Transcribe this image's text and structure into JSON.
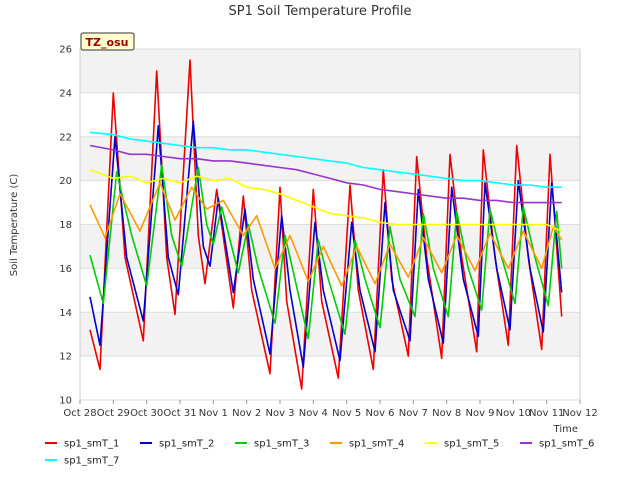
{
  "chart_data": {
    "type": "line",
    "title": "SP1 Soil Temperature Profile",
    "xlabel": "Time",
    "ylabel": "Soil Temperature (C)",
    "ylim": [
      10,
      26
    ],
    "yticks": [
      10,
      12,
      14,
      16,
      18,
      20,
      22,
      24,
      26
    ],
    "xlim": [
      0,
      15
    ],
    "xticks": [
      {
        "pos": 0,
        "label": "Oct 28"
      },
      {
        "pos": 1,
        "label": "Oct 29"
      },
      {
        "pos": 2,
        "label": "Oct 30"
      },
      {
        "pos": 3,
        "label": "Oct 31"
      },
      {
        "pos": 4,
        "label": "Nov 1"
      },
      {
        "pos": 5,
        "label": "Nov 2"
      },
      {
        "pos": 6,
        "label": "Nov 3"
      },
      {
        "pos": 7,
        "label": "Nov 4"
      },
      {
        "pos": 8,
        "label": "Nov 5"
      },
      {
        "pos": 9,
        "label": "Nov 6"
      },
      {
        "pos": 10,
        "label": "Nov 7"
      },
      {
        "pos": 11,
        "label": "Nov 8"
      },
      {
        "pos": 12,
        "label": "Nov 9"
      },
      {
        "pos": 13,
        "label": "Nov 10"
      },
      {
        "pos": 14,
        "label": "Nov 11"
      },
      {
        "pos": 15,
        "label": "Nov 12"
      }
    ],
    "annotation": "TZ_osu",
    "legend_position": "bottom",
    "series": [
      {
        "name": "sp1_smT_1",
        "color": "#ee0000",
        "x": [
          0.3,
          0.6,
          1.0,
          1.35,
          1.9,
          2.3,
          2.6,
          2.85,
          3.3,
          3.55,
          3.75,
          4.1,
          4.6,
          4.9,
          5.15,
          5.7,
          6.0,
          6.2,
          6.65,
          7.0,
          7.25,
          7.75,
          8.1,
          8.35,
          8.8,
          9.1,
          9.35,
          9.85,
          10.1,
          10.4,
          10.85,
          11.1,
          11.45,
          11.9,
          12.1,
          12.45,
          12.85,
          13.1,
          13.45,
          13.85,
          14.1,
          14.45
        ],
        "y": [
          13.2,
          11.4,
          24.0,
          16.5,
          12.7,
          25.0,
          16.5,
          13.9,
          25.5,
          17.5,
          15.3,
          19.6,
          14.2,
          19.3,
          15.0,
          11.2,
          19.7,
          14.5,
          10.5,
          19.6,
          14.5,
          11.0,
          19.8,
          15.0,
          11.4,
          20.5,
          15.5,
          12.0,
          21.1,
          16.5,
          11.9,
          21.2,
          16.5,
          12.2,
          21.4,
          16.5,
          12.5,
          21.6,
          16.5,
          12.3,
          21.2,
          13.8
        ]
      },
      {
        "name": "sp1_smT_2",
        "color": "#0000cc",
        "x": [
          0.3,
          0.6,
          1.05,
          1.4,
          1.9,
          2.35,
          2.65,
          2.95,
          3.4,
          3.7,
          3.9,
          4.15,
          4.6,
          4.95,
          5.2,
          5.7,
          6.05,
          6.3,
          6.7,
          7.05,
          7.3,
          7.8,
          8.15,
          8.4,
          8.85,
          9.15,
          9.4,
          9.9,
          10.15,
          10.45,
          10.9,
          11.15,
          11.5,
          11.95,
          12.15,
          12.5,
          12.9,
          13.15,
          13.5,
          13.9,
          14.15,
          14.45
        ],
        "y": [
          14.7,
          12.5,
          22.0,
          16.5,
          13.6,
          22.5,
          16.5,
          14.8,
          22.7,
          17.0,
          16.1,
          19.2,
          14.9,
          18.7,
          15.5,
          12.1,
          18.4,
          15.0,
          11.5,
          18.1,
          15.0,
          11.8,
          18.1,
          15.0,
          12.2,
          19.0,
          15.0,
          12.7,
          19.6,
          15.5,
          12.6,
          19.7,
          15.5,
          12.9,
          19.9,
          16.0,
          13.2,
          20.0,
          16.0,
          13.1,
          19.9,
          14.9
        ]
      },
      {
        "name": "sp1_smT_3",
        "color": "#00cc00",
        "x": [
          0.3,
          0.7,
          1.1,
          1.55,
          2.0,
          2.45,
          2.75,
          3.05,
          3.55,
          3.8,
          4.0,
          4.25,
          4.75,
          5.05,
          5.35,
          5.85,
          6.15,
          6.45,
          6.85,
          7.15,
          7.45,
          7.95,
          8.25,
          8.55,
          9.0,
          9.3,
          9.6,
          10.05,
          10.3,
          10.6,
          11.05,
          11.3,
          11.65,
          12.05,
          12.3,
          12.65,
          13.05,
          13.3,
          13.65,
          14.05,
          14.3,
          14.45
        ],
        "y": [
          16.6,
          14.4,
          20.4,
          17.5,
          15.2,
          20.7,
          17.5,
          16.1,
          20.6,
          18.0,
          17.1,
          18.8,
          15.8,
          18.0,
          16.0,
          13.5,
          17.5,
          15.5,
          12.8,
          17.3,
          15.5,
          13.0,
          17.3,
          15.5,
          13.3,
          17.9,
          15.5,
          13.8,
          18.5,
          16.0,
          13.8,
          18.6,
          16.0,
          14.1,
          18.7,
          16.5,
          14.4,
          18.8,
          16.5,
          14.3,
          18.6,
          16.0
        ]
      },
      {
        "name": "sp1_smT_4",
        "color": "#ff9900",
        "x": [
          0.3,
          0.75,
          1.2,
          1.8,
          2.4,
          2.85,
          3.35,
          3.8,
          4.3,
          4.9,
          5.3,
          5.85,
          6.3,
          6.85,
          7.3,
          7.85,
          8.3,
          8.85,
          9.3,
          9.85,
          10.3,
          10.85,
          11.3,
          11.85,
          12.3,
          12.85,
          13.3,
          13.85,
          14.2,
          14.45
        ],
        "y": [
          18.9,
          17.4,
          19.4,
          17.7,
          19.9,
          18.2,
          19.7,
          18.7,
          19.1,
          17.5,
          18.4,
          16.0,
          17.5,
          15.4,
          17.0,
          15.2,
          17.0,
          15.3,
          17.1,
          15.6,
          17.4,
          15.8,
          17.5,
          15.9,
          17.6,
          16.0,
          17.7,
          16.0,
          17.9,
          17.3
        ]
      },
      {
        "name": "sp1_smT_5",
        "color": "#ffff00",
        "x": [
          0.3,
          1.0,
          1.5,
          2.0,
          2.5,
          3.0,
          3.5,
          4.0,
          4.5,
          5.0,
          5.5,
          6.0,
          6.5,
          7.0,
          7.5,
          8.0,
          8.5,
          9.0,
          9.5,
          10.0,
          10.5,
          11.0,
          11.5,
          12.0,
          12.5,
          13.0,
          13.5,
          14.0,
          14.45
        ],
        "y": [
          20.5,
          20.1,
          20.2,
          19.9,
          20.1,
          19.9,
          20.2,
          20.0,
          20.1,
          19.7,
          19.6,
          19.4,
          19.1,
          18.8,
          18.5,
          18.4,
          18.3,
          18.1,
          18.0,
          18.0,
          18.0,
          18.0,
          18.0,
          18.0,
          18.0,
          18.0,
          18.0,
          18.0,
          17.7
        ]
      },
      {
        "name": "sp1_smT_6",
        "color": "#9933cc",
        "x": [
          0.3,
          1.0,
          1.5,
          2.0,
          2.5,
          3.0,
          3.5,
          4.0,
          4.5,
          5.0,
          5.5,
          6.0,
          6.5,
          7.0,
          7.5,
          8.0,
          8.5,
          9.0,
          9.5,
          10.0,
          10.5,
          11.0,
          11.5,
          12.0,
          12.5,
          13.0,
          13.5,
          14.0,
          14.45
        ],
        "y": [
          21.6,
          21.4,
          21.2,
          21.2,
          21.1,
          21.0,
          21.0,
          20.9,
          20.9,
          20.8,
          20.7,
          20.6,
          20.5,
          20.3,
          20.1,
          19.9,
          19.8,
          19.6,
          19.5,
          19.4,
          19.3,
          19.2,
          19.2,
          19.1,
          19.1,
          19.0,
          19.0,
          19.0,
          19.0
        ]
      },
      {
        "name": "sp1_smT_7",
        "color": "#00ffff",
        "x": [
          0.3,
          1.0,
          1.5,
          2.0,
          2.5,
          3.0,
          3.5,
          4.0,
          4.5,
          5.0,
          5.5,
          6.0,
          6.5,
          7.0,
          7.5,
          8.0,
          8.5,
          9.0,
          9.5,
          10.0,
          10.5,
          11.0,
          11.5,
          12.0,
          12.5,
          13.0,
          13.5,
          14.0,
          14.45
        ],
        "y": [
          22.2,
          22.1,
          21.9,
          21.8,
          21.7,
          21.6,
          21.5,
          21.5,
          21.4,
          21.4,
          21.3,
          21.2,
          21.1,
          21.0,
          20.9,
          20.8,
          20.6,
          20.5,
          20.4,
          20.3,
          20.2,
          20.1,
          20.0,
          20.0,
          19.9,
          19.8,
          19.8,
          19.7,
          19.7
        ]
      }
    ]
  }
}
